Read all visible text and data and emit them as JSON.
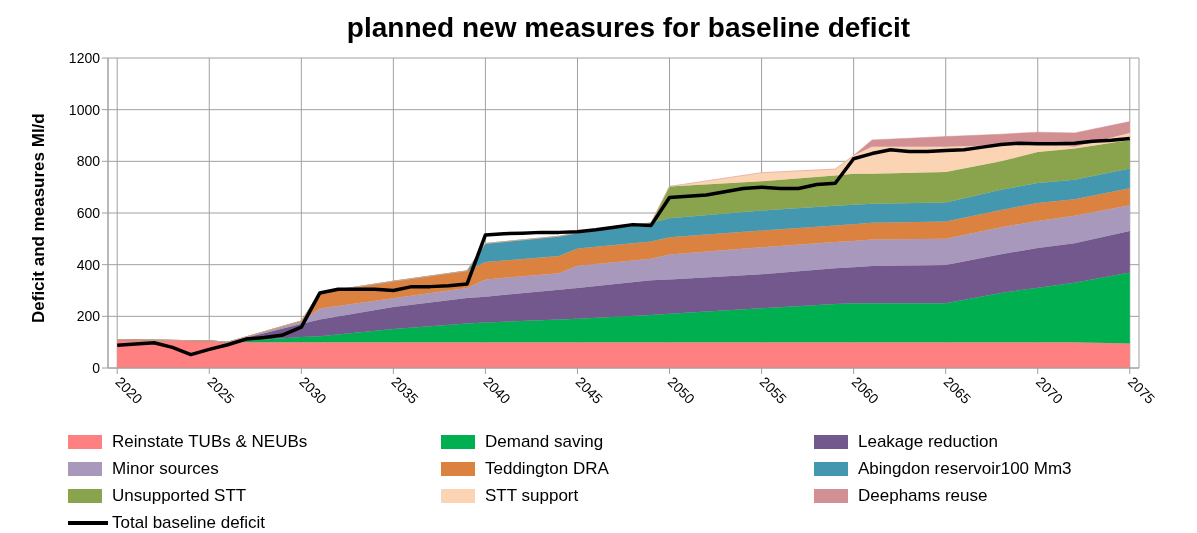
{
  "chart_data": {
    "type": "area",
    "stacked": true,
    "title": "planned new measures for baseline deficit",
    "ylabel": "Deficit and measures Ml/d",
    "x": [
      2020,
      2025,
      2026,
      2030,
      2031,
      2035,
      2039,
      2040,
      2044,
      2045,
      2049,
      2050,
      2055,
      2059,
      2060,
      2061,
      2065,
      2068,
      2070,
      2072,
      2075
    ],
    "xlim": [
      2019.5,
      2075.5
    ],
    "xticks": [
      2020,
      2025,
      2030,
      2035,
      2040,
      2045,
      2050,
      2055,
      2060,
      2065,
      2070,
      2075
    ],
    "ylim": [
      0,
      1200
    ],
    "yticks": [
      0,
      200,
      400,
      600,
      800,
      1000,
      1200
    ],
    "grid": true,
    "legend": "bottom",
    "series": [
      {
        "name": "Reinstate TUBs & NEUBs",
        "color": "#ff8080",
        "values": [
          110,
          105,
          100,
          100,
          100,
          100,
          100,
          100,
          100,
          100,
          100,
          100,
          100,
          100,
          100,
          100,
          100,
          100,
          100,
          100,
          95
        ]
      },
      {
        "name": "Demand saving",
        "color": "#00b050",
        "values": [
          0,
          0,
          0,
          20,
          23,
          51,
          72,
          76,
          88,
          91,
          105,
          110,
          131,
          148,
          151,
          151,
          151,
          190,
          211,
          230,
          275
        ]
      },
      {
        "name": "Leakage reduction",
        "color": "#72588d",
        "values": [
          0,
          0,
          0,
          50,
          65,
          85,
          99,
          100,
          115,
          119,
          135,
          133,
          132,
          138,
          139,
          144,
          148,
          150,
          154,
          153,
          160
        ]
      },
      {
        "name": "Minor sources",
        "color": "#a898bc",
        "values": [
          0,
          0,
          0,
          8,
          42,
          34,
          39,
          67,
          64,
          86,
          83,
          96,
          104,
          102,
          102,
          102,
          101,
          105,
          104,
          106,
          100
        ]
      },
      {
        "name": "Teddington DRA",
        "color": "#dc8240",
        "values": [
          0,
          0,
          0,
          4,
          62,
          66,
          66,
          67,
          67,
          67,
          67,
          67,
          65,
          64,
          64,
          65,
          67,
          67,
          70,
          64,
          66
        ]
      },
      {
        "name": "Abingdon reservoir100 Mm3",
        "color": "#4398b0",
        "values": [
          0,
          0,
          0,
          0,
          0,
          0,
          0,
          72,
          76,
          60,
          72,
          74,
          78,
          76,
          76,
          74,
          74,
          78,
          77,
          76,
          76
        ]
      },
      {
        "name": "Unsupported STT",
        "color": "#8aa34d",
        "values": [
          0,
          0,
          0,
          0,
          0,
          0,
          0,
          0,
          0,
          0,
          0,
          123,
          113,
          117,
          120,
          116,
          118,
          110,
          120,
          121,
          111
        ]
      },
      {
        "name": "STT support",
        "color": "#fbd4b4",
        "values": [
          0,
          0,
          0,
          0,
          0,
          0,
          0,
          0,
          0,
          0,
          0,
          0,
          33,
          25,
          71,
          104,
          97,
          62,
          33,
          6,
          27
        ]
      },
      {
        "name": "Deephams reuse",
        "color": "#d39093",
        "values": [
          0,
          0,
          0,
          0,
          0,
          0,
          0,
          0,
          0,
          0,
          0,
          0,
          0,
          0,
          0,
          27,
          40,
          43,
          44,
          54,
          44
        ]
      },
      {
        "name": "Total baseline deficit",
        "type": "line",
        "color": "#000000",
        "marker": "none",
        "x": [
          2020,
          2022,
          2023,
          2024,
          2025,
          2026,
          2027,
          2028,
          2029,
          2030,
          2031,
          2032,
          2033,
          2034,
          2035,
          2036,
          2037,
          2038,
          2039,
          2040,
          2041,
          2042,
          2043,
          2044,
          2045,
          2046,
          2047,
          2048,
          2049,
          2050,
          2051,
          2052,
          2053,
          2054,
          2055,
          2056,
          2057,
          2058,
          2059,
          2060,
          2061,
          2062,
          2063,
          2064,
          2065,
          2066,
          2067,
          2068,
          2069,
          2070,
          2071,
          2072,
          2073,
          2074,
          2075
        ],
        "values": [
          88,
          98,
          80,
          52,
          72,
          90,
          112,
          118,
          128,
          158,
          290,
          305,
          305,
          305,
          300,
          315,
          315,
          318,
          325,
          515,
          520,
          522,
          525,
          525,
          527,
          535,
          545,
          555,
          552,
          660,
          665,
          670,
          682,
          695,
          700,
          695,
          695,
          710,
          715,
          810,
          830,
          845,
          838,
          838,
          842,
          845,
          855,
          865,
          870,
          868,
          868,
          870,
          878,
          882,
          888
        ]
      }
    ]
  }
}
